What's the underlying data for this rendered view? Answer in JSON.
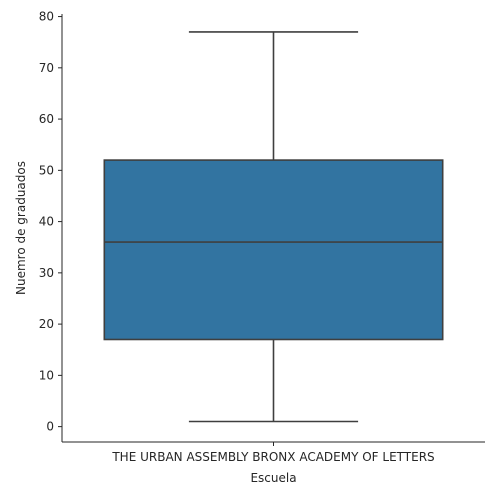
{
  "chart_data": {
    "type": "box",
    "categories": [
      "THE URBAN ASSEMBLY BRONX ACADEMY OF LETTERS"
    ],
    "boxes": [
      {
        "category": "THE URBAN ASSEMBLY BRONX ACADEMY OF LETTERS",
        "whisker_low": 1,
        "q1": 17,
        "median": 36,
        "q3": 52,
        "whisker_high": 77
      }
    ],
    "xlabel": "Escuela",
    "ylabel": "Nuemro de graduados",
    "ylim": [
      -3,
      80.5
    ],
    "yticks": [
      0,
      10,
      20,
      30,
      40,
      50,
      60,
      70,
      80
    ],
    "grid": false,
    "colors": {
      "box_fill": "#3274a1",
      "line": "#3f3f3f",
      "axis": "#262626"
    }
  }
}
